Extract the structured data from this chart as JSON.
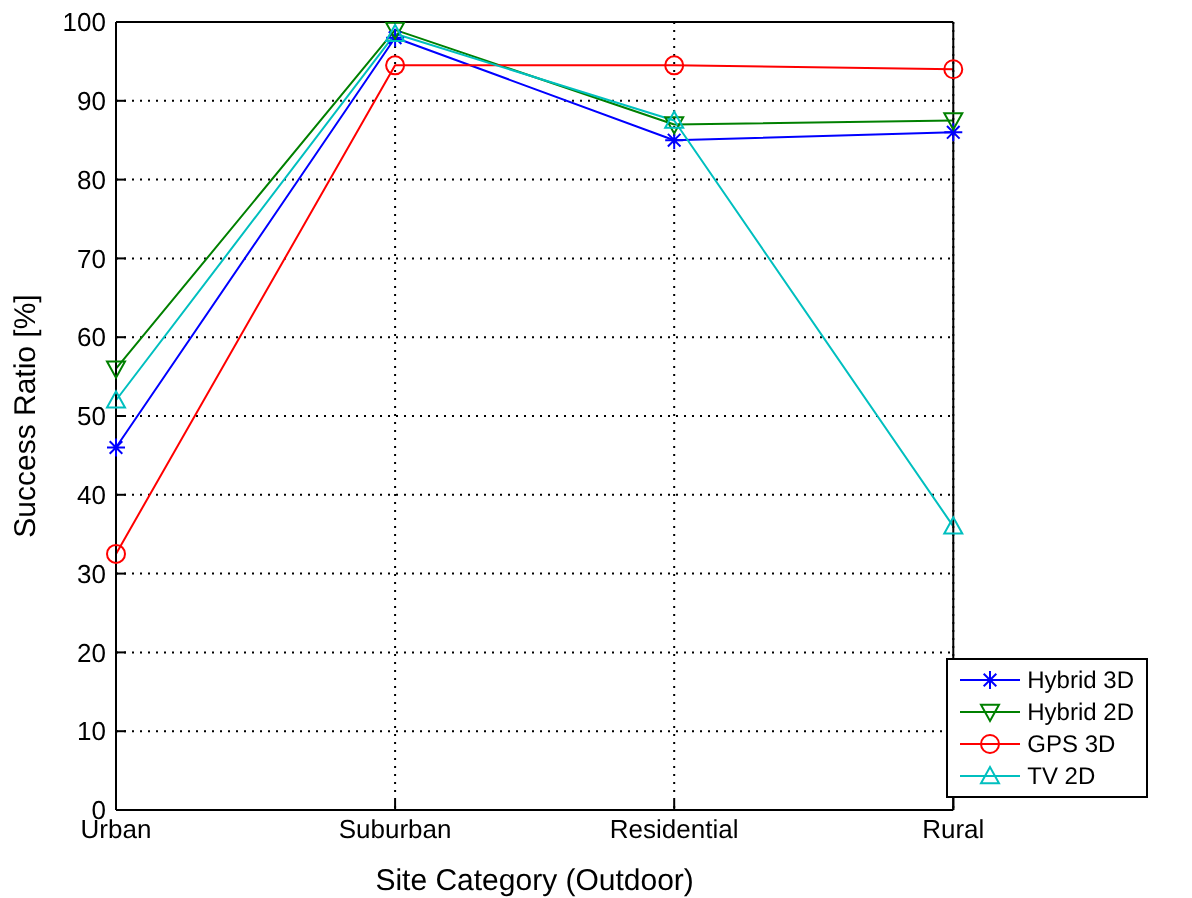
{
  "chart_data": {
    "type": "line",
    "xlabel": "Site Category (Outdoor)",
    "ylabel": "Success Ratio [%]",
    "categories": [
      "Urban",
      "Suburban",
      "Residential",
      "Rural"
    ],
    "series": [
      {
        "name": "Hybrid 3D",
        "color": "#0000ff",
        "marker": "cross",
        "values": [
          46,
          98,
          85,
          86
        ]
      },
      {
        "name": "Hybrid 2D",
        "color": "#008000",
        "marker": "triangle",
        "values": [
          56,
          99,
          87,
          87.5
        ]
      },
      {
        "name": "GPS 3D",
        "color": "#ff0000",
        "marker": "circle",
        "values": [
          32.5,
          94.5,
          94.5,
          94
        ]
      },
      {
        "name": "TV 2D",
        "color": "#00bfbf",
        "marker": "triangle",
        "values": [
          52,
          98.5,
          87.5,
          36
        ]
      }
    ],
    "ylim": [
      0,
      100
    ],
    "yticks": [
      0,
      10,
      20,
      30,
      40,
      50,
      60,
      70,
      80,
      90,
      100
    ],
    "grid": true,
    "legend": "bottom right",
    "line_style": "solid"
  }
}
